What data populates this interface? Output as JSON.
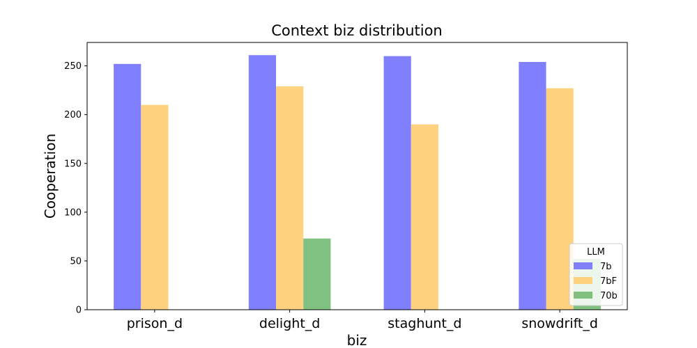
{
  "chart_data": {
    "type": "bar",
    "title": "Context biz distribution",
    "xlabel": "biz",
    "ylabel": "Cooperation",
    "categories": [
      "prison_d",
      "delight_d",
      "staghunt_d",
      "snowdrift_d"
    ],
    "series": [
      {
        "name": "7b",
        "color": "#8080ff",
        "values": [
          252,
          261,
          260,
          254
        ]
      },
      {
        "name": "7bF",
        "color": "#ffd280",
        "values": [
          210,
          229,
          190,
          227
        ]
      },
      {
        "name": "70b",
        "color": "#80c080",
        "values": [
          0,
          73,
          0,
          52
        ]
      }
    ],
    "ylim": [
      0,
      274
    ],
    "yticks": [
      0,
      50,
      100,
      150,
      200,
      250
    ],
    "legend": {
      "title": "LLM",
      "position": "lower-right"
    },
    "grid": false
  }
}
